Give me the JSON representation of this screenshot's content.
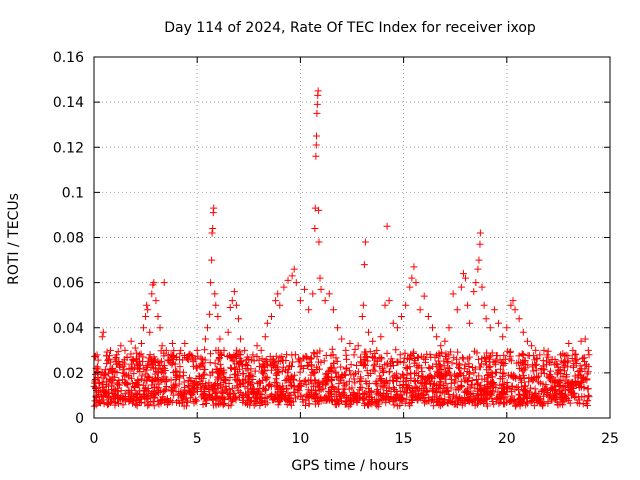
{
  "chart_data": {
    "type": "scatter",
    "title": "Day 114 of 2024, Rate Of TEC Index for receiver ixop",
    "xlabel": "GPS time / hours",
    "ylabel": "ROTI / TECUs",
    "xlim": [
      0,
      25
    ],
    "ylim": [
      0,
      0.16
    ],
    "xticks": [
      0,
      5,
      10,
      15,
      20,
      25
    ],
    "xtick_labels": [
      "0",
      "5",
      "10",
      "15",
      "20",
      "25"
    ],
    "yticks": [
      0,
      0.02,
      0.04,
      0.06,
      0.08,
      0.1,
      0.12,
      0.14,
      0.16
    ],
    "ytick_labels": [
      "0",
      "0.02",
      "0.04",
      "0.06",
      "0.08",
      "0.1",
      "0.12",
      "0.14",
      "0.16"
    ],
    "grid": true,
    "marker": "+",
    "color": "#ff0000",
    "data_span_hours": [
      0,
      24
    ],
    "series": [
      {
        "name": "ROTI",
        "points": [
          [
            0.0,
            0.014
          ],
          [
            0.1,
            0.022
          ],
          [
            0.15,
            0.028
          ],
          [
            0.2,
            0.018
          ],
          [
            0.3,
            0.012
          ],
          [
            0.4,
            0.036
          ],
          [
            0.45,
            0.038
          ],
          [
            0.5,
            0.02
          ],
          [
            0.6,
            0.016
          ],
          [
            0.7,
            0.026
          ],
          [
            0.8,
            0.03
          ],
          [
            0.9,
            0.022
          ],
          [
            1.0,
            0.018
          ],
          [
            1.1,
            0.028
          ],
          [
            1.2,
            0.025
          ],
          [
            1.3,
            0.032
          ],
          [
            1.4,
            0.02
          ],
          [
            1.5,
            0.03
          ],
          [
            1.6,
            0.027
          ],
          [
            1.7,
            0.022
          ],
          [
            1.8,
            0.034
          ],
          [
            1.9,
            0.026
          ],
          [
            2.0,
            0.031
          ],
          [
            2.1,
            0.024
          ],
          [
            2.2,
            0.028
          ],
          [
            2.3,
            0.033
          ],
          [
            2.4,
            0.04
          ],
          [
            2.5,
            0.045
          ],
          [
            2.55,
            0.05
          ],
          [
            2.6,
            0.048
          ],
          [
            2.7,
            0.038
          ],
          [
            2.8,
            0.055
          ],
          [
            2.85,
            0.059
          ],
          [
            2.9,
            0.06
          ],
          [
            3.0,
            0.052
          ],
          [
            3.1,
            0.045
          ],
          [
            3.2,
            0.04
          ],
          [
            3.3,
            0.032
          ],
          [
            3.4,
            0.06
          ],
          [
            3.5,
            0.03
          ],
          [
            3.6,
            0.028
          ],
          [
            3.8,
            0.033
          ],
          [
            4.0,
            0.027
          ],
          [
            4.2,
            0.03
          ],
          [
            4.4,
            0.033
          ],
          [
            4.6,
            0.028
          ],
          [
            4.8,
            0.025
          ],
          [
            5.0,
            0.03
          ],
          [
            5.2,
            0.024
          ],
          [
            5.4,
            0.035
          ],
          [
            5.5,
            0.04
          ],
          [
            5.6,
            0.046
          ],
          [
            5.65,
            0.06
          ],
          [
            5.7,
            0.07
          ],
          [
            5.72,
            0.082
          ],
          [
            5.75,
            0.084
          ],
          [
            5.78,
            0.091
          ],
          [
            5.8,
            0.093
          ],
          [
            5.85,
            0.055
          ],
          [
            5.9,
            0.05
          ],
          [
            6.0,
            0.045
          ],
          [
            6.1,
            0.035
          ],
          [
            6.3,
            0.03
          ],
          [
            6.5,
            0.038
          ],
          [
            6.6,
            0.049
          ],
          [
            6.7,
            0.052
          ],
          [
            6.8,
            0.056
          ],
          [
            6.9,
            0.05
          ],
          [
            7.0,
            0.044
          ],
          [
            7.1,
            0.035
          ],
          [
            7.3,
            0.03
          ],
          [
            7.5,
            0.026
          ],
          [
            7.7,
            0.028
          ],
          [
            7.9,
            0.032
          ],
          [
            8.1,
            0.03
          ],
          [
            8.3,
            0.036
          ],
          [
            8.4,
            0.042
          ],
          [
            8.6,
            0.045
          ],
          [
            8.8,
            0.052
          ],
          [
            8.9,
            0.055
          ],
          [
            9.0,
            0.05
          ],
          [
            9.2,
            0.058
          ],
          [
            9.4,
            0.061
          ],
          [
            9.6,
            0.063
          ],
          [
            9.7,
            0.066
          ],
          [
            9.8,
            0.06
          ],
          [
            10.0,
            0.052
          ],
          [
            10.2,
            0.057
          ],
          [
            10.4,
            0.048
          ],
          [
            10.6,
            0.055
          ],
          [
            10.7,
            0.084
          ],
          [
            10.72,
            0.093
          ],
          [
            10.75,
            0.116
          ],
          [
            10.77,
            0.121
          ],
          [
            10.78,
            0.125
          ],
          [
            10.8,
            0.135
          ],
          [
            10.82,
            0.139
          ],
          [
            10.84,
            0.143
          ],
          [
            10.86,
            0.145
          ],
          [
            10.88,
            0.092
          ],
          [
            10.9,
            0.078
          ],
          [
            10.95,
            0.062
          ],
          [
            11.0,
            0.057
          ],
          [
            11.2,
            0.052
          ],
          [
            11.4,
            0.055
          ],
          [
            11.6,
            0.048
          ],
          [
            11.8,
            0.04
          ],
          [
            12.0,
            0.035
          ],
          [
            12.2,
            0.03
          ],
          [
            12.4,
            0.033
          ],
          [
            12.6,
            0.028
          ],
          [
            12.8,
            0.032
          ],
          [
            13.0,
            0.045
          ],
          [
            13.05,
            0.05
          ],
          [
            13.1,
            0.068
          ],
          [
            13.15,
            0.078
          ],
          [
            13.3,
            0.038
          ],
          [
            13.5,
            0.034
          ],
          [
            13.7,
            0.03
          ],
          [
            13.9,
            0.036
          ],
          [
            14.1,
            0.05
          ],
          [
            14.2,
            0.085
          ],
          [
            14.3,
            0.052
          ],
          [
            14.5,
            0.042
          ],
          [
            14.7,
            0.04
          ],
          [
            14.9,
            0.045
          ],
          [
            15.1,
            0.05
          ],
          [
            15.3,
            0.058
          ],
          [
            15.4,
            0.062
          ],
          [
            15.5,
            0.067
          ],
          [
            15.6,
            0.06
          ],
          [
            15.8,
            0.048
          ],
          [
            16.0,
            0.054
          ],
          [
            16.2,
            0.045
          ],
          [
            16.4,
            0.04
          ],
          [
            16.6,
            0.036
          ],
          [
            16.8,
            0.032
          ],
          [
            17.0,
            0.034
          ],
          [
            17.2,
            0.04
          ],
          [
            17.4,
            0.055
          ],
          [
            17.6,
            0.048
          ],
          [
            17.8,
            0.058
          ],
          [
            17.9,
            0.064
          ],
          [
            18.0,
            0.062
          ],
          [
            18.1,
            0.05
          ],
          [
            18.2,
            0.042
          ],
          [
            18.4,
            0.056
          ],
          [
            18.5,
            0.06
          ],
          [
            18.6,
            0.066
          ],
          [
            18.65,
            0.07
          ],
          [
            18.7,
            0.077
          ],
          [
            18.72,
            0.082
          ],
          [
            18.8,
            0.058
          ],
          [
            18.9,
            0.05
          ],
          [
            19.0,
            0.044
          ],
          [
            19.2,
            0.04
          ],
          [
            19.4,
            0.048
          ],
          [
            19.6,
            0.042
          ],
          [
            19.8,
            0.036
          ],
          [
            20.0,
            0.04
          ],
          [
            20.2,
            0.05
          ],
          [
            20.3,
            0.052
          ],
          [
            20.4,
            0.048
          ],
          [
            20.6,
            0.044
          ],
          [
            20.8,
            0.038
          ],
          [
            21.0,
            0.034
          ],
          [
            21.2,
            0.032
          ],
          [
            21.4,
            0.03
          ],
          [
            21.6,
            0.028
          ],
          [
            21.8,
            0.03
          ],
          [
            22.0,
            0.027
          ],
          [
            22.2,
            0.026
          ],
          [
            22.4,
            0.024
          ],
          [
            22.6,
            0.028
          ],
          [
            22.8,
            0.025
          ],
          [
            23.0,
            0.033
          ],
          [
            23.2,
            0.03
          ],
          [
            23.4,
            0.026
          ],
          [
            23.6,
            0.034
          ],
          [
            23.8,
            0.035
          ],
          [
            23.95,
            0.03
          ]
        ]
      }
    ]
  }
}
